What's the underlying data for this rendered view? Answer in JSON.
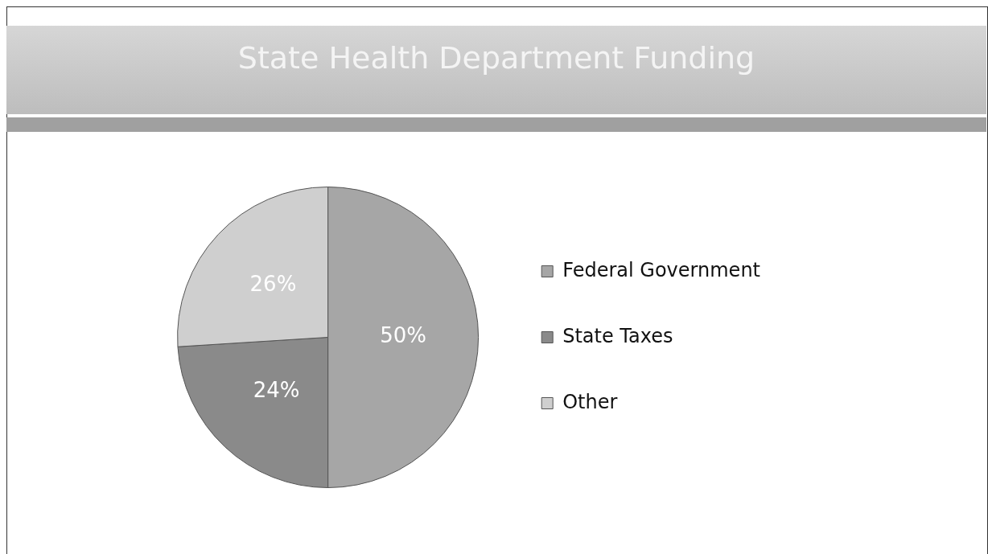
{
  "chart_data": {
    "type": "pie",
    "title": "State Health Department Funding",
    "categories": [
      "Federal Government",
      "State Taxes",
      "Other"
    ],
    "values": [
      50,
      24,
      26
    ],
    "colors": [
      "#a6a6a6",
      "#8a8a8a",
      "#cfcfcf"
    ],
    "value_labels": [
      "50%",
      "24%",
      "26%"
    ],
    "legend": "right"
  }
}
